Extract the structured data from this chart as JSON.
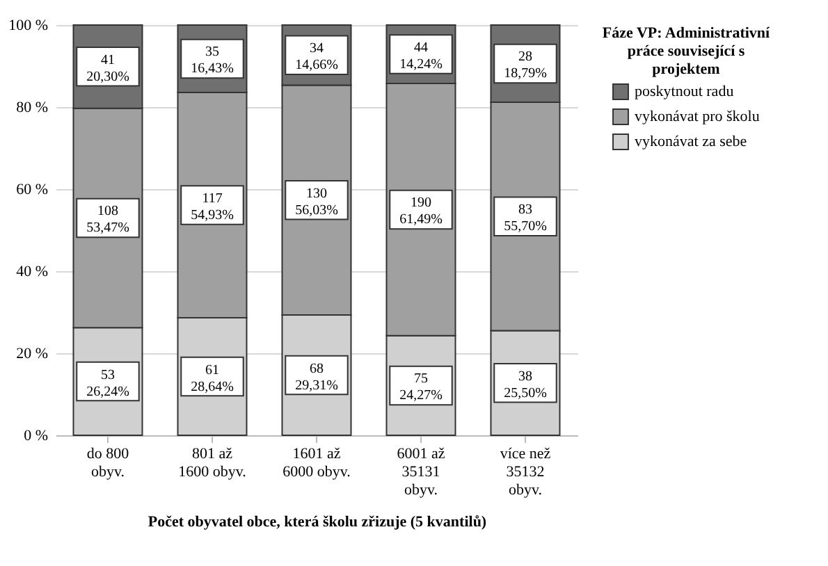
{
  "chart_data": {
    "type": "bar",
    "stacked": true,
    "xlabel": "Počet obyvatel obce, která školu zřizuje (5 kvantilů)",
    "legend_title": "Fáze VP: Administrativní práce související s projektem",
    "categories": [
      "do 800 obyv.",
      "801 až 1600 obyv.",
      "1601 až 6000 obyv.",
      "6001 až 35131 obyv.",
      "více než 35132 obyv."
    ],
    "series": [
      {
        "name": "vykonávat za sebe",
        "color": "#d0d0d0",
        "values": [
          26.24,
          28.64,
          29.31,
          24.27,
          25.5
        ],
        "value_labels": [
          "53\n26,24%",
          "61\n28,64%",
          "68\n29,31%",
          "75\n24,27%",
          "38\n25,50%"
        ]
      },
      {
        "name": "vykonávat pro školu",
        "color": "#a0a0a0",
        "values": [
          53.47,
          54.93,
          56.03,
          61.49,
          55.7
        ],
        "value_labels": [
          "108\n53,47%",
          "117\n54,93%",
          "130\n56,03%",
          "190\n61,49%",
          "83\n55,70%"
        ]
      },
      {
        "name": "poskytnout radu",
        "color": "#707070",
        "values": [
          20.3,
          16.43,
          14.66,
          14.24,
          18.79
        ],
        "value_labels": [
          "41\n20,30%",
          "35\n16,43%",
          "34\n14,66%",
          "44\n14,24%",
          "28\n18,79%"
        ]
      }
    ],
    "ylim": [
      0,
      100
    ],
    "yticks": [
      {
        "value": 0,
        "label": "0 %"
      },
      {
        "value": 20,
        "label": "20 %"
      },
      {
        "value": 40,
        "label": "40 %"
      },
      {
        "value": 60,
        "label": "60 %"
      },
      {
        "value": 80,
        "label": "80 %"
      },
      {
        "value": 100,
        "label": "100 %"
      }
    ],
    "grid": "y",
    "legend": "top right"
  }
}
